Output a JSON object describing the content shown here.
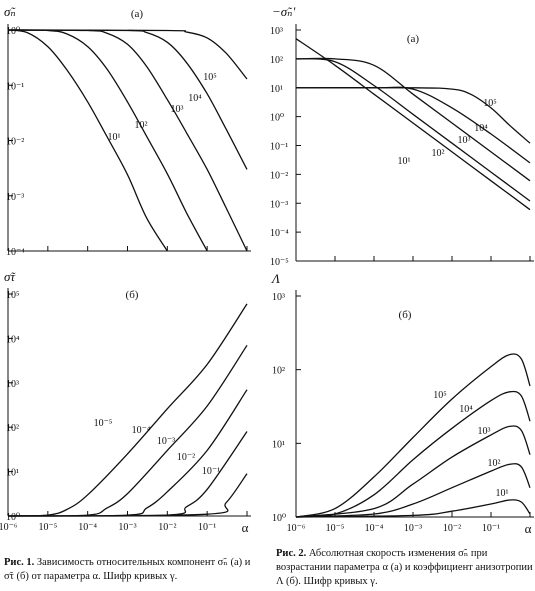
{
  "captions": [
    {
      "label": "Рис. 1.",
      "text": "Зависимость относительных компонент σ̃ₙ (а) и σ̃τ (б) от параметра α. Шифр кривых γ."
    },
    {
      "label": "Рис. 2.",
      "text": "Абсолютная скорость изменения σ̃ₙ при возрастании параметра α (а) и коэффициент анизотропии Λ (б). Шифр кривых γ."
    }
  ],
  "chart_data": [
    {
      "type": "line",
      "panel": "(а)",
      "ylabel": "σ̃ₙ",
      "xlabel": "",
      "xscale": "log",
      "yscale": "log",
      "xlim": [
        1e-06,
        1
      ],
      "ylim": [
        0.0001,
        1
      ],
      "yticks": [
        "10⁰",
        "10⁻¹",
        "10⁻²",
        "10⁻³",
        "10⁻⁴"
      ],
      "series": [
        {
          "name": "10⁵",
          "x": [
            1e-06,
            3e-06,
            1e-05,
            3e-05,
            0.0001,
            0.0003,
            0.001,
            0.003,
            0.01
          ],
          "y": [
            1,
            0.9,
            0.5,
            0.19,
            0.05,
            0.012,
            0.0024,
            0.0004,
            0.0001
          ]
        },
        {
          "name": "10⁴",
          "x": [
            1e-06,
            1e-05,
            3e-05,
            0.0001,
            0.0003,
            0.001,
            0.003,
            0.01,
            0.03,
            0.1
          ],
          "y": [
            1,
            0.98,
            0.85,
            0.5,
            0.2,
            0.05,
            0.012,
            0.0025,
            0.0005,
            0.0001
          ]
        },
        {
          "name": "10³",
          "x": [
            1e-06,
            0.0001,
            0.0003,
            0.001,
            0.003,
            0.01,
            0.03,
            0.1,
            0.3,
            1
          ],
          "y": [
            1,
            0.98,
            0.88,
            0.55,
            0.22,
            0.055,
            0.014,
            0.003,
            0.0006,
            0.0001
          ]
        },
        {
          "name": "10²",
          "x": [
            1e-06,
            0.001,
            0.003,
            0.01,
            0.03,
            0.1,
            0.3,
            1
          ],
          "y": [
            1,
            0.98,
            0.9,
            0.6,
            0.26,
            0.07,
            0.016,
            0.003
          ]
        },
        {
          "name": "10¹",
          "x": [
            1e-06,
            0.01,
            0.03,
            0.1,
            0.3,
            1
          ],
          "y": [
            1,
            0.98,
            0.92,
            0.72,
            0.38,
            0.13
          ]
        }
      ]
    },
    {
      "type": "line",
      "panel": "(а)",
      "ylabel": "−σ̃ₙ′",
      "xlabel": "",
      "xscale": "log",
      "yscale": "log",
      "xlim": [
        1e-06,
        1
      ],
      "ylim": [
        1e-05,
        1000
      ],
      "yticks": [
        "10³",
        "10²",
        "10¹",
        "10⁰",
        "10⁻¹",
        "10⁻²",
        "10⁻³",
        "10⁻⁴",
        "10⁻⁵"
      ],
      "series": [
        {
          "name": "10⁵",
          "x": [
            1e-06,
            1e-05,
            0.0001,
            0.001,
            0.01,
            0.1,
            1
          ],
          "y": [
            500,
            60,
            6,
            0.6,
            0.06,
            0.006,
            0.0006
          ]
        },
        {
          "name": "10⁴",
          "x": [
            1e-06,
            1e-05,
            0.0001,
            0.001,
            0.01,
            0.1,
            1
          ],
          "y": [
            100,
            80,
            12,
            1.2,
            0.12,
            0.012,
            0.0012
          ]
        },
        {
          "name": "10³",
          "x": [
            1e-06,
            1e-05,
            0.0001,
            0.001,
            0.01,
            0.1,
            1
          ],
          "y": [
            100,
            100,
            60,
            6,
            0.6,
            0.06,
            0.006
          ]
        },
        {
          "name": "10²",
          "x": [
            1e-06,
            0.0001,
            0.001,
            0.01,
            0.1,
            1
          ],
          "y": [
            10,
            10,
            9,
            2,
            0.25,
            0.025
          ]
        },
        {
          "name": "10¹",
          "x": [
            1e-06,
            0.001,
            0.01,
            0.03,
            0.1,
            0.3,
            1
          ],
          "y": [
            10,
            10,
            9,
            6,
            2,
            0.5,
            0.12
          ]
        }
      ]
    },
    {
      "type": "line",
      "panel": "(б)",
      "ylabel": "σ̃τ",
      "xlabel": "α",
      "xscale": "log",
      "yscale": "log",
      "xlim": [
        1e-06,
        1
      ],
      "ylim": [
        1,
        100000
      ],
      "xticks": [
        "10⁻⁶",
        "10⁻⁵",
        "10⁻⁴",
        "10⁻³",
        "10⁻²",
        "10⁻¹"
      ],
      "yticks": [
        "10⁵",
        "10⁴",
        "10³",
        "10²",
        "10¹",
        "10⁰"
      ],
      "series": [
        {
          "name": "10⁻⁵",
          "x": [
            1e-06,
            1e-05,
            3e-05,
            0.0001,
            0.001,
            0.01,
            0.1,
            1
          ],
          "y": [
            1,
            1.05,
            1.4,
            3,
            25,
            260,
            2600,
            60000
          ]
        },
        {
          "name": "10⁻⁴",
          "x": [
            1e-06,
            0.0001,
            0.0003,
            0.001,
            0.01,
            0.1,
            1
          ],
          "y": [
            1,
            1.05,
            1.5,
            3.2,
            30,
            300,
            7000
          ]
        },
        {
          "name": "10⁻³",
          "x": [
            1e-06,
            0.001,
            0.003,
            0.01,
            0.1,
            1
          ],
          "y": [
            1,
            1.05,
            1.5,
            3.5,
            30,
            700
          ]
        },
        {
          "name": "10⁻²",
          "x": [
            1e-06,
            0.01,
            0.03,
            0.1,
            1
          ],
          "y": [
            1,
            1.05,
            1.6,
            4,
            80
          ]
        },
        {
          "name": "10⁻¹",
          "x": [
            1e-06,
            0.1,
            0.3,
            1
          ],
          "y": [
            1,
            1.1,
            2,
            9
          ]
        }
      ]
    },
    {
      "type": "line",
      "panel": "(б)",
      "ylabel": "Λ",
      "xlabel": "α",
      "xscale": "log",
      "yscale": "log",
      "xlim": [
        1e-06,
        1
      ],
      "ylim": [
        1,
        1000
      ],
      "xticks": [
        "10⁻⁶",
        "10⁻⁵",
        "10⁻⁴",
        "10⁻³",
        "10⁻²",
        "10⁻¹"
      ],
      "yticks": [
        "10³",
        "10²",
        "10¹",
        "10⁰"
      ],
      "series": [
        {
          "name": "10⁵",
          "x": [
            1e-06,
            1e-05,
            0.0001,
            0.001,
            0.01,
            0.1,
            0.3,
            0.6,
            1
          ],
          "y": [
            1,
            1.3,
            3.5,
            12,
            40,
            110,
            160,
            140,
            60
          ]
        },
        {
          "name": "10⁴",
          "x": [
            1e-06,
            1e-05,
            0.0001,
            0.001,
            0.01,
            0.1,
            0.3,
            0.6,
            1
          ],
          "y": [
            1,
            1.1,
            2,
            6,
            16,
            38,
            50,
            44,
            20
          ]
        },
        {
          "name": "10³",
          "x": [
            1e-06,
            0.0001,
            0.001,
            0.01,
            0.1,
            0.3,
            0.6,
            1
          ],
          "y": [
            1,
            1.3,
            2.8,
            6.5,
            13,
            17,
            15,
            7
          ]
        },
        {
          "name": "10²",
          "x": [
            1e-06,
            0.0001,
            0.001,
            0.01,
            0.1,
            0.3,
            0.6,
            1
          ],
          "y": [
            1,
            1.1,
            1.5,
            2.5,
            4.2,
            5.2,
            4.8,
            2.5
          ]
        },
        {
          "name": "10¹",
          "x": [
            1e-06,
            0.001,
            0.01,
            0.1,
            0.3,
            0.6,
            1
          ],
          "y": [
            1,
            1.05,
            1.2,
            1.5,
            1.7,
            1.6,
            1.1
          ]
        }
      ]
    }
  ]
}
